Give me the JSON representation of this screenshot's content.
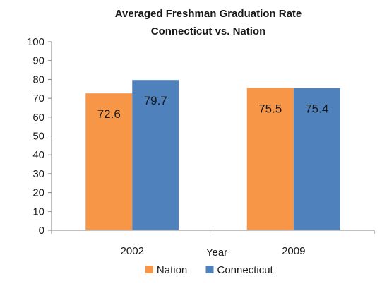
{
  "chart_data": {
    "type": "bar",
    "title": "Averaged Freshman Graduation Rate",
    "subtitle": "Connecticut vs. Nation",
    "xlabel": "Year",
    "ylabel": "",
    "categories": [
      "2002",
      "2009"
    ],
    "series": [
      {
        "name": "Nation",
        "values": [
          72.6,
          75.5
        ],
        "color": "#f79646"
      },
      {
        "name": "Connecticut",
        "values": [
          79.7,
          75.4
        ],
        "color": "#4f81bd"
      }
    ],
    "ylim": [
      0,
      100
    ],
    "yticks": [
      0,
      10,
      20,
      30,
      40,
      50,
      60,
      70,
      80,
      90,
      100
    ],
    "grid": false,
    "legend_position": "bottom",
    "data_labels": true
  }
}
